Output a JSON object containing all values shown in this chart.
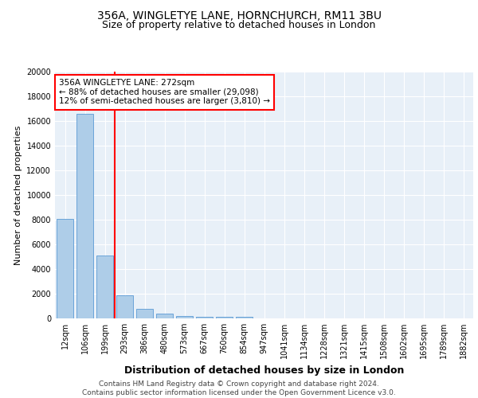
{
  "title1": "356A, WINGLETYE LANE, HORNCHURCH, RM11 3BU",
  "title2": "Size of property relative to detached houses in London",
  "xlabel": "Distribution of detached houses by size in London",
  "ylabel": "Number of detached properties",
  "categories": [
    "12sqm",
    "106sqm",
    "199sqm",
    "293sqm",
    "386sqm",
    "480sqm",
    "573sqm",
    "667sqm",
    "760sqm",
    "854sqm",
    "947sqm",
    "1041sqm",
    "1134sqm",
    "1228sqm",
    "1321sqm",
    "1415sqm",
    "1508sqm",
    "1602sqm",
    "1695sqm",
    "1789sqm",
    "1882sqm"
  ],
  "values": [
    8050,
    16600,
    5100,
    1850,
    800,
    400,
    220,
    150,
    110,
    150,
    0,
    0,
    0,
    0,
    0,
    0,
    0,
    0,
    0,
    0,
    0
  ],
  "bar_color": "#aecde8",
  "bar_edgecolor": "#5b9bd5",
  "red_line_x": 2.5,
  "annotation_text": "356A WINGLETYE LANE: 272sqm\n← 88% of detached houses are smaller (29,098)\n12% of semi-detached houses are larger (3,810) →",
  "annotation_box_color": "white",
  "annotation_box_edgecolor": "red",
  "ylim": [
    0,
    20000
  ],
  "yticks": [
    0,
    2000,
    4000,
    6000,
    8000,
    10000,
    12000,
    14000,
    16000,
    18000,
    20000
  ],
  "background_color": "#e8f0f8",
  "footer_text": "Contains HM Land Registry data © Crown copyright and database right 2024.\nContains public sector information licensed under the Open Government Licence v3.0.",
  "title1_fontsize": 10,
  "title2_fontsize": 9,
  "xlabel_fontsize": 9,
  "ylabel_fontsize": 8,
  "tick_fontsize": 7,
  "annotation_fontsize": 7.5,
  "footer_fontsize": 6.5
}
